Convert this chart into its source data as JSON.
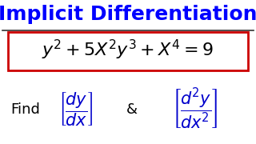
{
  "title": "Implicit Differentiation",
  "title_color": "#0000FF",
  "title_fontsize": 18,
  "equation_color": "#000000",
  "equation_fontsize": 16,
  "box_color": "#CC0000",
  "find_text": "Find",
  "find_color": "#000000",
  "find_fontsize": 13,
  "deriv_color": "#0000CC",
  "amp_text": "&",
  "amp_color": "#000000",
  "background_color": "#FFFFFF",
  "line_color": "#333333"
}
